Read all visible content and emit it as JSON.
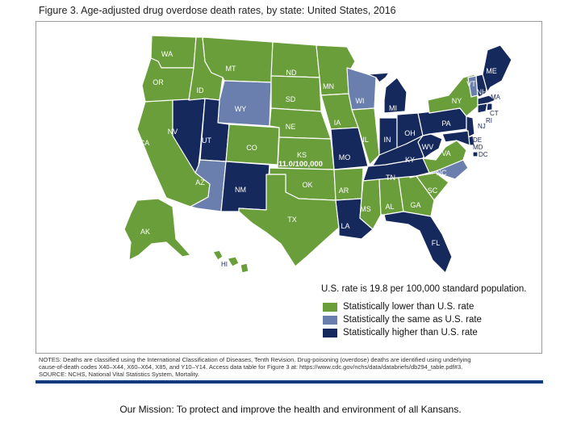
{
  "figure": {
    "title": "Figure 3. Age-adjusted drug overdose death rates, by state: United States, 2016"
  },
  "colors": {
    "lower": "#6a9e3a",
    "same": "#6b7fae",
    "higher": "#15295c",
    "background": "#ffffff",
    "border": "#ffffff"
  },
  "map": {
    "kansas_value_label": "11.0/100,000",
    "states": {
      "WA": "WA",
      "OR": "OR",
      "CA": "CA",
      "NV": "NV",
      "ID": "ID",
      "MT": "MT",
      "WY": "WY",
      "UT": "UT",
      "AZ": "AZ",
      "CO": "CO",
      "NM": "NM",
      "ND": "ND",
      "SD": "SD",
      "NE": "NE",
      "KS": "KS",
      "OK": "OK",
      "TX": "TX",
      "MN": "MN",
      "IA": "IA",
      "MO": "MO",
      "AR": "AR",
      "LA": "LA",
      "WI": "WI",
      "IL": "IL",
      "MI": "MI",
      "IN": "IN",
      "OH": "OH",
      "KY": "KY",
      "TN": "TN",
      "MS": "MS",
      "AL": "AL",
      "GA": "GA",
      "FL": "FL",
      "SC": "SC",
      "NC": "NC",
      "VA": "VA",
      "WV": "WV",
      "PA": "PA",
      "NY": "NY",
      "VT": "VT",
      "NH": "NH",
      "ME": "ME",
      "MA": "MA",
      "CT": "CT",
      "RI": "RI",
      "NJ": "NJ",
      "DE": "DE",
      "MD": "MD",
      "DC": "DC",
      "AK": "AK",
      "HI": "HI"
    }
  },
  "legend": {
    "title": "U.S. rate is 19.8 per 100,000 standard population.",
    "items": [
      {
        "label": "Statistically lower than U.S. rate",
        "color": "#6a9e3a"
      },
      {
        "label": "Statistically the same as U.S. rate",
        "color": "#6b7fae"
      },
      {
        "label": "Statistically higher than U.S. rate",
        "color": "#15295c"
      }
    ]
  },
  "notes": {
    "line1": "NOTES: Deaths are classified using the International Classification of Diseases, Tenth Revision. Drug-poisoning (overdose) deaths are identified using underlying",
    "line2": "cause-of-death codes X40–X44, X60–X64, X85, and Y10–Y14. Access data table for Figure 3 at: https://www.cdc.gov/nchs/data/databriefs/db294_table.pdf#3.",
    "line3": "SOURCE: NCHS, National Vital Statistics System, Mortality."
  },
  "footer": {
    "mission": "Our Mission: To protect and improve the health and environment of all Kansans."
  }
}
